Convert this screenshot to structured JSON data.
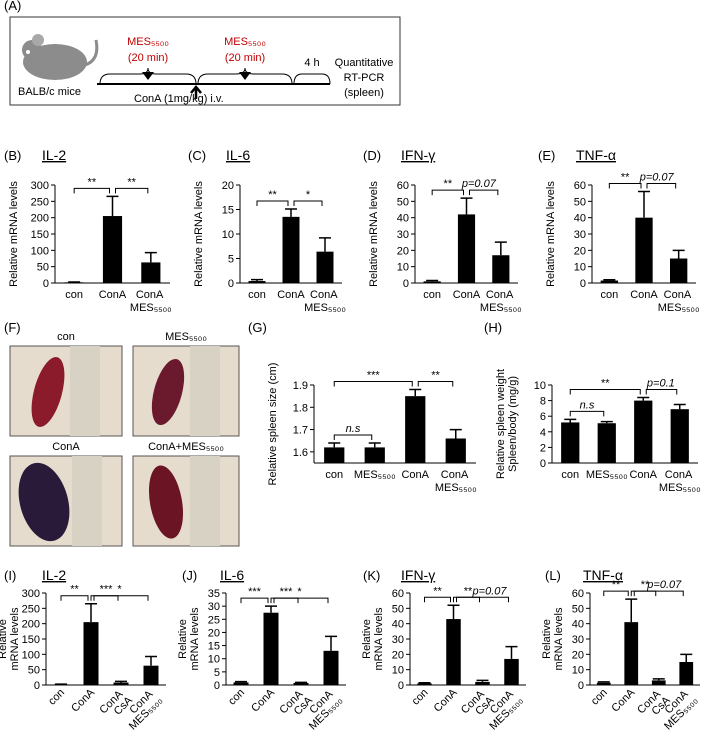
{
  "diagram": {
    "panel": "(A)",
    "mouse": "BALB/c mice",
    "treatments": [
      {
        "agent": "MES₅₅₀₀",
        "duration": "(20 min)"
      },
      {
        "agent": "MES₅₅₀₀",
        "duration": "(20 min)"
      }
    ],
    "interval": "4 h",
    "readout": [
      "Quantitative",
      "RT-PCR",
      "(spleen)"
    ],
    "injection": "ConA (1mg/kg) i.v."
  },
  "photos": {
    "panel": "(F)",
    "labels": [
      "con",
      "MES₅₅₀₀",
      "ConA",
      "ConA+MES₅₅₀₀"
    ]
  },
  "chart_data": [
    {
      "type": "bar",
      "panel": "(B)",
      "title": "IL-2",
      "ylabel": "Relative mRNA levels",
      "categories": [
        "con",
        "ConA",
        "ConA MES₅₅₀₀"
      ],
      "values": [
        2,
        205,
        63
      ],
      "errors": [
        1,
        60,
        30
      ],
      "color": "#000000",
      "ylim": [
        0,
        300
      ],
      "yticks": [
        0,
        50,
        100,
        150,
        200,
        250,
        300
      ],
      "brackets": [
        {
          "between": [
            0,
            1
          ],
          "label": "**"
        },
        {
          "between": [
            1,
            2
          ],
          "label": "**"
        }
      ]
    },
    {
      "type": "bar",
      "panel": "(C)",
      "title": "IL-6",
      "ylabel": "Relative mRNA levels",
      "categories": [
        "con",
        "ConA",
        "ConA MES₅₅₀₀"
      ],
      "values": [
        0.4,
        13.5,
        6.4
      ],
      "errors": [
        0.3,
        1.6,
        2.8
      ],
      "color": "#000000",
      "ylim": [
        0,
        20
      ],
      "yticks": [
        0,
        5,
        10,
        15,
        20
      ],
      "brackets": [
        {
          "between": [
            0,
            1
          ],
          "label": "**"
        },
        {
          "between": [
            1,
            2
          ],
          "label": "*"
        }
      ]
    },
    {
      "type": "bar",
      "panel": "(D)",
      "title": "IFN-γ",
      "ylabel": "Relative mRNA levels",
      "categories": [
        "con",
        "ConA",
        "ConA MES₅₅₀₀"
      ],
      "values": [
        1,
        42,
        17
      ],
      "errors": [
        0.5,
        10,
        8
      ],
      "color": "#000000",
      "ylim": [
        0,
        60
      ],
      "yticks": [
        0,
        10,
        20,
        30,
        40,
        50,
        60
      ],
      "brackets": [
        {
          "between": [
            0,
            1
          ],
          "label": "**"
        },
        {
          "between": [
            1,
            2
          ],
          "label": "p=0.07"
        }
      ]
    },
    {
      "type": "bar",
      "panel": "(E)",
      "title": "TNF-α",
      "ylabel": "Relative mRNA levels",
      "categories": [
        "con",
        "ConA",
        "ConA MES₅₅₀₀"
      ],
      "values": [
        1.5,
        40,
        15
      ],
      "errors": [
        0.5,
        16,
        5
      ],
      "color": "#000000",
      "ylim": [
        0,
        60
      ],
      "yticks": [
        0,
        10,
        20,
        30,
        40,
        50,
        60
      ],
      "brackets": [
        {
          "between": [
            0,
            1
          ],
          "label": "**"
        },
        {
          "between": [
            1,
            2
          ],
          "label": "p=0.07"
        }
      ]
    },
    {
      "type": "bar",
      "panel": "(G)",
      "ylabel": "Relative spleen size (cm)",
      "categories": [
        "con",
        "MES₅₅₀₀",
        "ConA",
        "ConA MES₅₅₀₀"
      ],
      "values": [
        1.62,
        1.62,
        1.85,
        1.66
      ],
      "errors": [
        0.02,
        0.02,
        0.03,
        0.04
      ],
      "color": "#000000",
      "ylim": [
        1.55,
        1.9
      ],
      "yticks": [
        1.6,
        1.7,
        1.8,
        1.9
      ],
      "brackets": [
        {
          "between": [
            0,
            1
          ],
          "label": "n.s"
        },
        {
          "between": [
            0,
            2
          ],
          "label": "***"
        },
        {
          "between": [
            2,
            3
          ],
          "label": "**"
        }
      ]
    },
    {
      "type": "bar",
      "panel": "(H)",
      "ylabel": [
        "Relative spleen weight",
        "Spleen/body (mg/g)"
      ],
      "categories": [
        "con",
        "MES₅₅₀₀",
        "ConA",
        "ConA MES₅₅₀₀"
      ],
      "values": [
        5.2,
        5.1,
        8.0,
        6.9
      ],
      "errors": [
        0.4,
        0.2,
        0.4,
        0.6
      ],
      "color": "#000000",
      "ylim": [
        0,
        10
      ],
      "yticks": [
        0,
        2,
        4,
        6,
        8,
        10
      ],
      "brackets": [
        {
          "between": [
            0,
            1
          ],
          "label": "n.s"
        },
        {
          "between": [
            0,
            2
          ],
          "label": "**"
        },
        {
          "between": [
            2,
            3
          ],
          "label": "p=0.1"
        }
      ]
    },
    {
      "type": "bar",
      "panel": "(I)",
      "title": "IL-2",
      "ylabel": [
        "Relative",
        "mRNA levels"
      ],
      "categories": [
        "con",
        "ConA",
        "ConA CsA",
        "ConA MES₅₅₀₀"
      ],
      "values": [
        2,
        205,
        8,
        63
      ],
      "errors": [
        1,
        60,
        4,
        30
      ],
      "color": "#000000",
      "ylim": [
        0,
        300
      ],
      "yticks": [
        0,
        50,
        100,
        150,
        200,
        250,
        300
      ],
      "brackets": [
        {
          "between": [
            0,
            1
          ],
          "label": "**"
        },
        {
          "between": [
            1,
            2
          ],
          "label": "***"
        },
        {
          "between": [
            1,
            3
          ],
          "label": "*"
        }
      ]
    },
    {
      "type": "bar",
      "panel": "(J)",
      "title": "IL-6",
      "ylabel": [
        "Relative",
        "mRNA levels"
      ],
      "categories": [
        "con",
        "ConA",
        "ConA CsA",
        "ConA MES₅₅₀₀"
      ],
      "values": [
        1,
        27.5,
        0.8,
        13
      ],
      "errors": [
        0.3,
        2.5,
        0.2,
        5.5
      ],
      "color": "#000000",
      "ylim": [
        0,
        35
      ],
      "yticks": [
        0,
        5,
        10,
        15,
        20,
        25,
        30,
        35
      ],
      "brackets": [
        {
          "between": [
            0,
            1
          ],
          "label": "***"
        },
        {
          "between": [
            1,
            2
          ],
          "label": "***"
        },
        {
          "between": [
            1,
            3
          ],
          "label": "*"
        }
      ]
    },
    {
      "type": "bar",
      "panel": "(K)",
      "title": "IFN-γ",
      "ylabel": [
        "Relative",
        "mRNA levels"
      ],
      "categories": [
        "con",
        "ConA",
        "ConA CsA",
        "ConA MES₅₅₀₀"
      ],
      "values": [
        1,
        43,
        2,
        17
      ],
      "errors": [
        0.5,
        9,
        1,
        8
      ],
      "color": "#000000",
      "ylim": [
        0,
        60
      ],
      "yticks": [
        0,
        10,
        20,
        30,
        40,
        50,
        60
      ],
      "brackets": [
        {
          "between": [
            0,
            1
          ],
          "label": "**"
        },
        {
          "between": [
            1,
            2
          ],
          "label": "**"
        },
        {
          "between": [
            1,
            3
          ],
          "label": "p=0.07"
        }
      ]
    },
    {
      "type": "bar",
      "panel": "(L)",
      "title": "TNF-α",
      "ylabel": [
        "Relative",
        "mRNA levels"
      ],
      "categories": [
        "con",
        "ConA",
        "ConA CsA",
        "ConA MES₅₅₀₀"
      ],
      "values": [
        1.5,
        41,
        3,
        15
      ],
      "errors": [
        0.5,
        15,
        1,
        5
      ],
      "color": "#000000",
      "ylim": [
        0,
        60
      ],
      "yticks": [
        0,
        10,
        20,
        30,
        40,
        50,
        60
      ],
      "brackets": [
        {
          "between": [
            0,
            1
          ],
          "label": "**"
        },
        {
          "between": [
            1,
            2
          ],
          "label": "**"
        },
        {
          "between": [
            1,
            3
          ],
          "label": "p=0.07"
        }
      ]
    }
  ]
}
